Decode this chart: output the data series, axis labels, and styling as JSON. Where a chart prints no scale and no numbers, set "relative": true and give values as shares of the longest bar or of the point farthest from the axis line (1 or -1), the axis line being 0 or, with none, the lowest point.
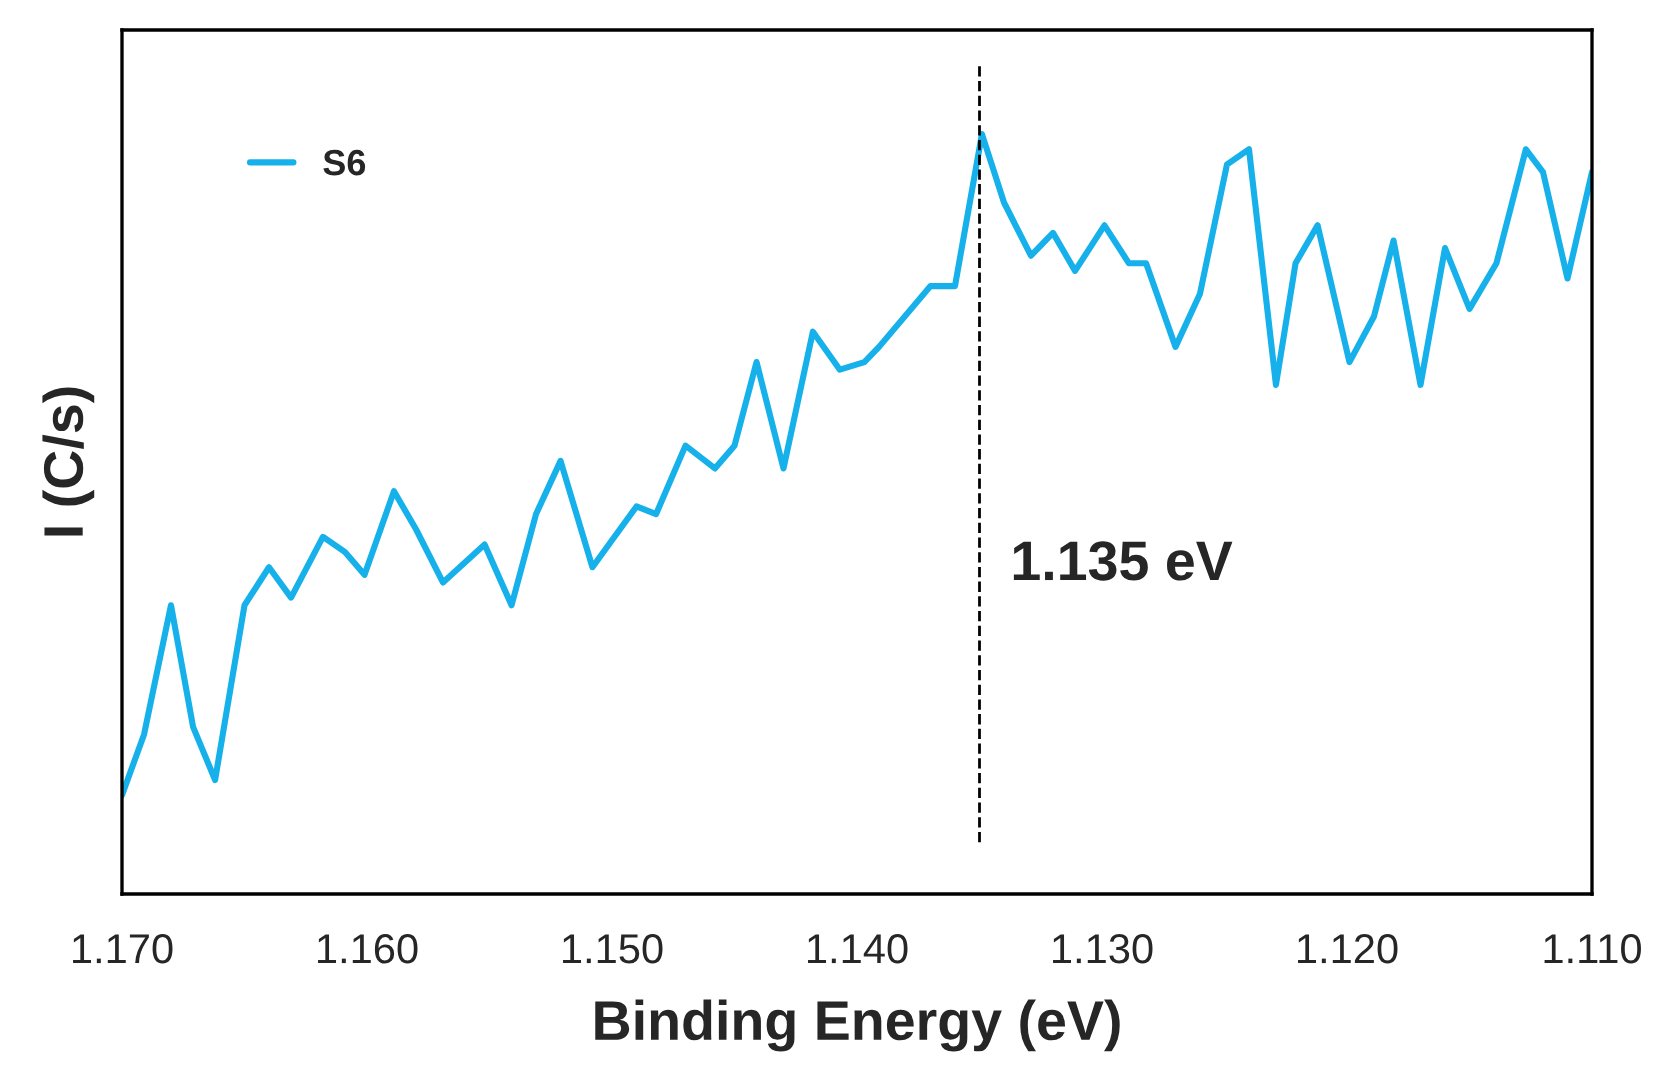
{
  "chart_data": {
    "type": "line",
    "xlabel": "Binding Energy (eV)",
    "ylabel": "I (C/s)",
    "relative": true,
    "xlim": [
      1.17,
      1.11
    ],
    "xticks": [
      {
        "value": 1.17,
        "label": "1.170"
      },
      {
        "value": 1.16,
        "label": "1.160"
      },
      {
        "value": 1.15,
        "label": "1.150"
      },
      {
        "value": 1.14,
        "label": "1.140"
      },
      {
        "value": 1.13,
        "label": "1.130"
      },
      {
        "value": 1.12,
        "label": "1.120"
      },
      {
        "value": 1.11,
        "label": "1.110"
      }
    ],
    "x": [
      1.17,
      1.1691,
      1.168,
      1.1671,
      1.1662,
      1.165,
      1.164,
      1.1631,
      1.1618,
      1.1609,
      1.1601,
      1.1589,
      1.158,
      1.1569,
      1.1552,
      1.1541,
      1.1531,
      1.1521,
      1.1508,
      1.149,
      1.1482,
      1.147,
      1.1458,
      1.145,
      1.1441,
      1.143,
      1.1418,
      1.1407,
      1.1397,
      1.1391,
      1.137,
      1.136,
      1.1349,
      1.134,
      1.1329,
      1.132,
      1.1311,
      1.1299,
      1.1289,
      1.1282,
      1.127,
      1.126,
      1.1249,
      1.124,
      1.1229,
      1.1221,
      1.1212,
      1.1199,
      1.1189,
      1.1181,
      1.117,
      1.116,
      1.115,
      1.1139,
      1.1127,
      1.112,
      1.111,
      1.11
    ],
    "series": [
      {
        "name": "S6",
        "color": "#16b1ea",
        "values": [
          0.13,
          0.21,
          0.38,
          0.22,
          0.15,
          0.38,
          0.43,
          0.39,
          0.47,
          0.45,
          0.42,
          0.53,
          0.48,
          0.41,
          0.46,
          0.38,
          0.5,
          0.57,
          0.43,
          0.51,
          0.5,
          0.59,
          0.56,
          0.59,
          0.7,
          0.56,
          0.74,
          0.69,
          0.7,
          0.72,
          0.8,
          0.8,
          1.0,
          0.91,
          0.84,
          0.87,
          0.82,
          0.88,
          0.83,
          0.83,
          0.72,
          0.79,
          0.96,
          0.98,
          0.67,
          0.83,
          0.88,
          0.7,
          0.76,
          0.86,
          0.67,
          0.85,
          0.77,
          0.83,
          0.98,
          0.95,
          0.81,
          0.95
        ]
      }
    ],
    "ref_lines": [
      {
        "axis": "x",
        "value": 1.135,
        "label": "1.135 eV",
        "color": "#000000",
        "line_style": "dashed"
      }
    ],
    "legend": "top left",
    "grid": false,
    "marker": "none",
    "line_style": "solid"
  }
}
